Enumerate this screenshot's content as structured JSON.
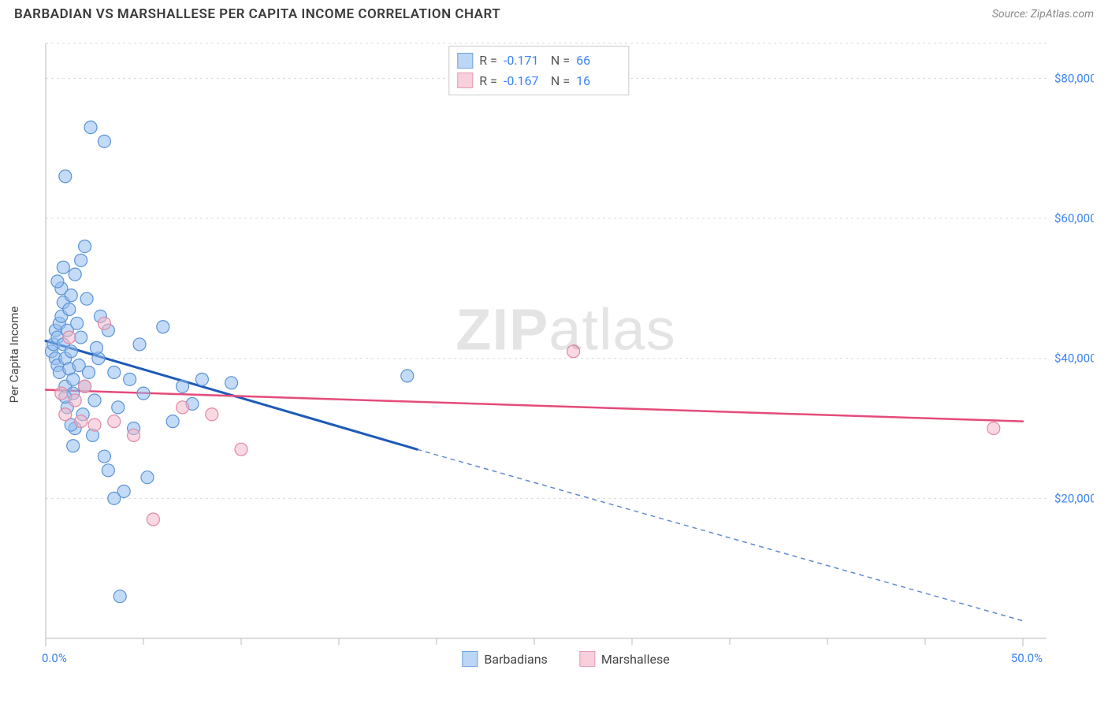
{
  "header": {
    "title": "BARBADIAN VS MARSHALLESE PER CAPITA INCOME CORRELATION CHART",
    "source": "Source: ZipAtlas.com"
  },
  "watermark": {
    "part1": "ZIP",
    "part2": "atlas"
  },
  "chart": {
    "type": "scatter",
    "ylabel": "Per Capita Income",
    "xlim": [
      0,
      50
    ],
    "ylim": [
      0,
      85000
    ],
    "x_ticks_major": [
      0,
      50
    ],
    "x_ticks_minor": [
      5,
      10,
      15,
      20,
      25,
      30,
      35,
      40,
      45
    ],
    "x_tick_labels": [
      "0.0%",
      "50.0%"
    ],
    "y_ticks": [
      20000,
      40000,
      60000,
      80000
    ],
    "y_tick_labels": [
      "$20,000",
      "$40,000",
      "$60,000",
      "$80,000"
    ],
    "grid_color": "#d9d9d9",
    "axis_color": "#b8b8b8",
    "tick_label_color": "#3b82f6",
    "tick_label_fontsize": 15,
    "background_color": "#ffffff",
    "marker_radius": 8,
    "marker_opacity": 0.55,
    "series": [
      {
        "name": "Barbadians",
        "color_fill": "#94bdf0",
        "color_stroke": "#5a93d6",
        "swatch_fill": "#bcd6f5",
        "swatch_stroke": "#6fa2db",
        "R_label": "R =",
        "R": "-0.171",
        "N_label": "N =",
        "N": "66",
        "points": [
          [
            0.3,
            41000
          ],
          [
            0.4,
            42000
          ],
          [
            0.5,
            40000
          ],
          [
            0.5,
            44000
          ],
          [
            0.6,
            43000
          ],
          [
            0.6,
            39000
          ],
          [
            0.7,
            45000
          ],
          [
            0.7,
            38000
          ],
          [
            0.8,
            50000
          ],
          [
            0.8,
            46000
          ],
          [
            0.9,
            48000
          ],
          [
            0.9,
            42000
          ],
          [
            1.0,
            40000
          ],
          [
            1.0,
            36000
          ],
          [
            1.1,
            33000
          ],
          [
            1.1,
            44000
          ],
          [
            1.2,
            38500
          ],
          [
            1.2,
            47000
          ],
          [
            1.3,
            49000
          ],
          [
            1.3,
            41000
          ],
          [
            1.4,
            37000
          ],
          [
            1.4,
            35000
          ],
          [
            1.5,
            52000
          ],
          [
            1.5,
            30000
          ],
          [
            1.6,
            45000
          ],
          [
            1.7,
            39000
          ],
          [
            1.8,
            54000
          ],
          [
            1.8,
            43000
          ],
          [
            1.9,
            32000
          ],
          [
            2.0,
            36000
          ],
          [
            2.0,
            56000
          ],
          [
            2.2,
            38000
          ],
          [
            2.3,
            73000
          ],
          [
            2.4,
            29000
          ],
          [
            2.5,
            34000
          ],
          [
            2.7,
            40000
          ],
          [
            2.8,
            46000
          ],
          [
            3.0,
            71000
          ],
          [
            3.0,
            26000
          ],
          [
            3.2,
            24000
          ],
          [
            3.2,
            44000
          ],
          [
            3.5,
            38000
          ],
          [
            3.7,
            33000
          ],
          [
            3.8,
            6000
          ],
          [
            4.0,
            21000
          ],
          [
            4.3,
            37000
          ],
          [
            4.5,
            30000
          ],
          [
            4.8,
            42000
          ],
          [
            5.0,
            35000
          ],
          [
            5.2,
            23000
          ],
          [
            6.0,
            44500
          ],
          [
            6.5,
            31000
          ],
          [
            7.0,
            36000
          ],
          [
            7.5,
            33500
          ],
          [
            8.0,
            37000
          ],
          [
            9.5,
            36500
          ],
          [
            1.0,
            66000
          ],
          [
            0.6,
            51000
          ],
          [
            0.9,
            53000
          ],
          [
            1.3,
            30500
          ],
          [
            1.4,
            27500
          ],
          [
            2.6,
            41500
          ],
          [
            2.1,
            48500
          ],
          [
            3.5,
            20000
          ],
          [
            1.0,
            34500
          ],
          [
            18.5,
            37500
          ]
        ],
        "trend": {
          "x1": 0,
          "y1": 42500,
          "x2": 19,
          "y2": 27000,
          "extend_x2": 50,
          "extend_y2": 2500,
          "color": "#1e5bb8",
          "width": 3
        }
      },
      {
        "name": "Marshallese",
        "color_fill": "#f4b8c9",
        "color_stroke": "#e088a6",
        "swatch_fill": "#f8cfda",
        "swatch_stroke": "#e49bb4",
        "R_label": "R =",
        "R": "-0.167",
        "N_label": "N =",
        "N": "16",
        "points": [
          [
            0.8,
            35000
          ],
          [
            1.0,
            32000
          ],
          [
            1.2,
            43000
          ],
          [
            1.5,
            34000
          ],
          [
            1.8,
            31000
          ],
          [
            2.0,
            36000
          ],
          [
            2.5,
            30500
          ],
          [
            3.0,
            45000
          ],
          [
            3.5,
            31000
          ],
          [
            4.5,
            29000
          ],
          [
            5.5,
            17000
          ],
          [
            7.0,
            33000
          ],
          [
            8.5,
            32000
          ],
          [
            10.0,
            27000
          ],
          [
            27.0,
            41000
          ],
          [
            48.5,
            30000
          ]
        ],
        "trend": {
          "x1": 0,
          "y1": 35500,
          "x2": 50,
          "y2": 31000,
          "color": "#e54b7a",
          "width": 2.5
        }
      }
    ]
  },
  "legend": {
    "series1": "Barbadians",
    "series2": "Marshallese"
  }
}
